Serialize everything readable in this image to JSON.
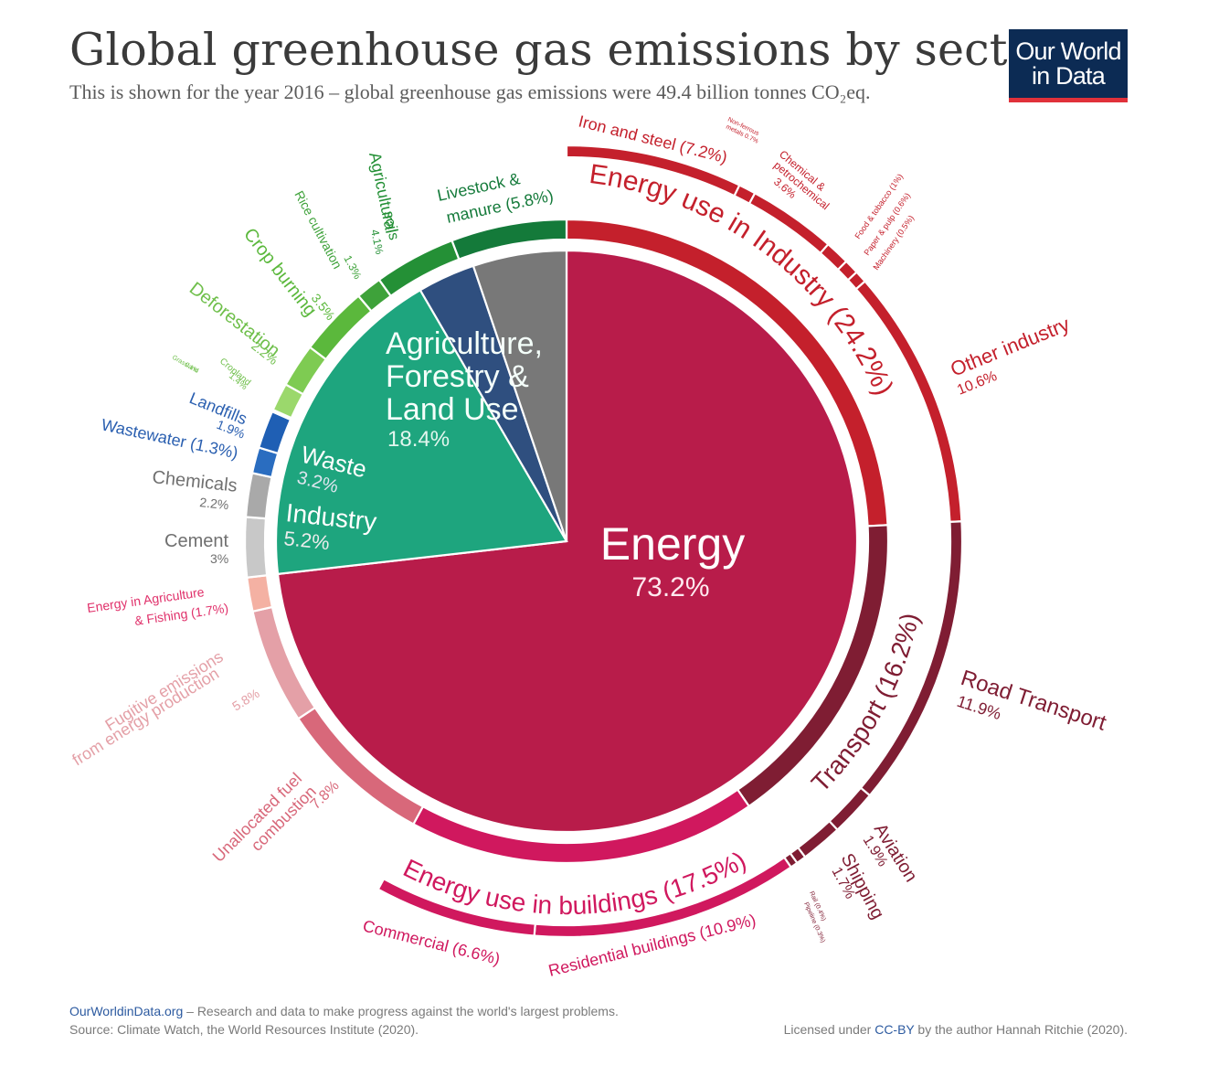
{
  "header": {
    "title": "Global greenhouse gas emissions by sector",
    "subtitle": "This is shown for the year 2016 – global greenhouse gas emissions were 49.4 billion tonnes CO₂eq.",
    "logo_line1": "Our World",
    "logo_line2": "in Data"
  },
  "footer": {
    "site": "OurWorldinData.org",
    "tagline": " – Research and data to make progress against the world's largest problems.",
    "source": "Source: Climate Watch, the World Resources Institute (2020).",
    "license_prefix": "Licensed under ",
    "license_link": "CC-BY",
    "license_suffix": " by the author Hannah Ritchie (2020)."
  },
  "colors": {
    "energy": "#b81c4a",
    "agriculture": "#1ea57e",
    "waste": "#2f4f7f",
    "industry": "#787878"
  },
  "chart_data": {
    "type": "pie",
    "title": "Global greenhouse gas emissions by sector",
    "year": 2016,
    "total": "49.4 billion tonnes CO₂eq",
    "inner": [
      {
        "name": "Energy",
        "label": "73.2%",
        "value": 73.2,
        "color": "#b81c4a"
      },
      {
        "name": "Agriculture, Forestry & Land Use",
        "label": "18.4%",
        "value": 18.4,
        "color": "#1ea57e"
      },
      {
        "name": "Waste",
        "label": "3.2%",
        "value": 3.2,
        "color": "#2f4f7f"
      },
      {
        "name": "Industry",
        "label": "5.2%",
        "value": 5.2,
        "color": "#787878"
      }
    ],
    "middle": [
      {
        "name": "Energy use in Industry",
        "value": 24.2,
        "color": "#c4202c",
        "label": "Energy use in Industry (24.2%)"
      },
      {
        "name": "Transport",
        "value": 16.2,
        "color": "#7f1d33",
        "label": "Transport (16.2%)"
      },
      {
        "name": "Energy use in buildings",
        "value": 17.5,
        "color": "#d0185e",
        "label": "Energy use in buildings (17.5%)"
      },
      {
        "name": "Unallocated fuel combustion",
        "value": 7.8,
        "color": "#d8687a",
        "label": ""
      },
      {
        "name": "Fugitive emissions from energy production",
        "value": 5.8,
        "color": "#e4a0a7",
        "label": ""
      },
      {
        "name": "Energy in Agriculture & Fishing",
        "value": 1.7,
        "color": "#f4b1a3",
        "label": ""
      },
      {
        "name": "Cement",
        "value": 3.0,
        "color": "#c8c8c8",
        "label": ""
      },
      {
        "name": "Chemicals",
        "value": 2.2,
        "color": "#a9a9a9",
        "label": ""
      },
      {
        "name": "Wastewater",
        "value": 1.3,
        "color": "#2a6dc0",
        "label": ""
      },
      {
        "name": "Landfills",
        "value": 1.9,
        "color": "#1f5fb4",
        "label": ""
      },
      {
        "name": "Grassland",
        "value": 0.1,
        "color": "#b8e08c",
        "label": ""
      },
      {
        "name": "Cropland",
        "value": 1.4,
        "color": "#9bd86c",
        "label": ""
      },
      {
        "name": "Deforestation",
        "value": 2.2,
        "color": "#7ecb52",
        "label": ""
      },
      {
        "name": "Crop burning",
        "value": 3.5,
        "color": "#5bb83c",
        "label": ""
      },
      {
        "name": "Rice cultivation",
        "value": 1.3,
        "color": "#3ea23a",
        "label": ""
      },
      {
        "name": "Agricultural soils",
        "value": 4.1,
        "color": "#249036",
        "label": ""
      },
      {
        "name": "Livestock & manure",
        "value": 5.8,
        "color": "#147a3a",
        "label": ""
      }
    ],
    "outer": [
      {
        "name": "Iron and steel",
        "value": 7.2,
        "color": "#c4202c"
      },
      {
        "name": "Non-ferrous metals",
        "value": 0.7,
        "color": "#c4202c"
      },
      {
        "name": "Chemical & petrochemical",
        "value": 3.6,
        "color": "#c4202c"
      },
      {
        "name": "Food & tobacco",
        "value": 1.0,
        "color": "#c4202c"
      },
      {
        "name": "Paper & pulp",
        "value": 0.6,
        "color": "#c4202c"
      },
      {
        "name": "Machinery",
        "value": 0.5,
        "color": "#c4202c"
      },
      {
        "name": "Other industry",
        "value": 10.6,
        "color": "#c4202c"
      },
      {
        "name": "Road Transport",
        "value": 11.9,
        "color": "#7f1d33"
      },
      {
        "name": "Aviation",
        "value": 1.9,
        "color": "#7f1d33"
      },
      {
        "name": "Shipping",
        "value": 1.7,
        "color": "#7f1d33"
      },
      {
        "name": "Rail",
        "value": 0.4,
        "color": "#7f1d33"
      },
      {
        "name": "Pipeline",
        "value": 0.3,
        "color": "#7f1d33"
      },
      {
        "name": "Residential buildings",
        "value": 10.9,
        "color": "#d0185e"
      },
      {
        "name": "Commercial",
        "value": 6.6,
        "color": "#d0185e"
      }
    ],
    "labels": [
      {
        "id": "iron",
        "text": "Iron and steel (7.2%)",
        "color": "#c4202c"
      },
      {
        "id": "nonfer1",
        "text": "Non-ferrous",
        "color": "#c4202c"
      },
      {
        "id": "nonfer2",
        "text": "metals 0.7%",
        "color": "#c4202c"
      },
      {
        "id": "chem1",
        "text": "Chemical &",
        "color": "#c4202c"
      },
      {
        "id": "chem2",
        "text": "petrochemical",
        "color": "#c4202c"
      },
      {
        "id": "chem3",
        "text": "3.6%",
        "color": "#c4202c"
      },
      {
        "id": "food",
        "text": "Food & tobacco (1%)",
        "color": "#c4202c"
      },
      {
        "id": "paper",
        "text": "Paper & pulp (0.6%)",
        "color": "#c4202c"
      },
      {
        "id": "mach",
        "text": "Machinery (0.5%)",
        "color": "#c4202c"
      },
      {
        "id": "other1",
        "text": "Other industry",
        "color": "#c4202c"
      },
      {
        "id": "other2",
        "text": "10.6%",
        "color": "#c4202c"
      },
      {
        "id": "road1",
        "text": "Road Transport",
        "color": "#7f1d33"
      },
      {
        "id": "road2",
        "text": "11.9%",
        "color": "#7f1d33"
      },
      {
        "id": "aviation1",
        "text": "Aviation",
        "color": "#7f1d33"
      },
      {
        "id": "aviation2",
        "text": "1.9%",
        "color": "#7f1d33"
      },
      {
        "id": "shipping1",
        "text": "Shipping",
        "color": "#7f1d33"
      },
      {
        "id": "shipping2",
        "text": "1.7%",
        "color": "#7f1d33"
      },
      {
        "id": "rail",
        "text": "Rail (0.4%)",
        "color": "#7f1d33"
      },
      {
        "id": "pipeline",
        "text": "Pipeline (0.3%)",
        "color": "#7f1d33"
      },
      {
        "id": "residential",
        "text": "Residential buildings (10.9%)",
        "color": "#d0185e"
      },
      {
        "id": "commercial",
        "text": "Commercial (6.6%)",
        "color": "#d0185e"
      },
      {
        "id": "unalloc1",
        "text": "Unallocated fuel",
        "color": "#d8687a"
      },
      {
        "id": "unalloc2",
        "text": "combustion",
        "color": "#d8687a"
      },
      {
        "id": "unalloc3",
        "text": "7.8%",
        "color": "#d8687a"
      },
      {
        "id": "fugitive1",
        "text": "Fugitive emissions",
        "color": "#e4a0a7"
      },
      {
        "id": "fugitive2",
        "text": "from energy production",
        "color": "#e4a0a7"
      },
      {
        "id": "fugitive3",
        "text": "5.8%",
        "color": "#e4a0a7"
      },
      {
        "id": "enagri1",
        "text": "Energy in Agriculture",
        "color": "#e0306a"
      },
      {
        "id": "enagri2",
        "text": "& Fishing (1.7%)",
        "color": "#e0306a"
      },
      {
        "id": "cement1",
        "text": "Cement",
        "color": "#707070"
      },
      {
        "id": "cement2",
        "text": "3%",
        "color": "#707070"
      },
      {
        "id": "chemicals1",
        "text": "Chemicals",
        "color": "#707070"
      },
      {
        "id": "chemicals2",
        "text": "2.2%",
        "color": "#707070"
      },
      {
        "id": "wastewater",
        "text": "Wastewater (1.3%)",
        "color": "#2a5fb0"
      },
      {
        "id": "landfills1",
        "text": "Landfills",
        "color": "#2a5fb0"
      },
      {
        "id": "landfills2",
        "text": "1.9%",
        "color": "#2a5fb0"
      },
      {
        "id": "grass1",
        "text": "Grassland",
        "color": "#6fbf4b"
      },
      {
        "id": "grass2",
        "text": "0.1%",
        "color": "#6fbf4b"
      },
      {
        "id": "cropland1",
        "text": "Cropland",
        "color": "#6fbf4b"
      },
      {
        "id": "cropland2",
        "text": "1.4%",
        "color": "#6fbf4b"
      },
      {
        "id": "defor1",
        "text": "Deforestation",
        "color": "#6fbf4b"
      },
      {
        "id": "defor2",
        "text": "2.2%",
        "color": "#6fbf4b"
      },
      {
        "id": "cropburn1",
        "text": "Crop burning",
        "color": "#5bb83c"
      },
      {
        "id": "cropburn2",
        "text": "3.5%",
        "color": "#5bb83c"
      },
      {
        "id": "rice1",
        "text": "Rice cultivation",
        "color": "#3ea23a"
      },
      {
        "id": "rice2",
        "text": "1.3%",
        "color": "#3ea23a"
      },
      {
        "id": "soils1",
        "text": "Agricultural",
        "color": "#249036"
      },
      {
        "id": "soils2",
        "text": "soils",
        "color": "#249036"
      },
      {
        "id": "soils3",
        "text": "4.1%",
        "color": "#249036"
      },
      {
        "id": "livestock1",
        "text": "Livestock &",
        "color": "#147a3a"
      },
      {
        "id": "livestock2",
        "text": "manure (5.8%)",
        "color": "#147a3a"
      }
    ],
    "inner_text": {
      "agriculture_lines": [
        "Agriculture,",
        "Forestry &",
        "Land Use"
      ],
      "agriculture_pct": "18.4%",
      "waste_name": "Waste",
      "waste_pct": "3.2%",
      "industry_name": "Industry",
      "industry_pct": "5.2%",
      "energy_name": "Energy",
      "energy_pct": "73.2%"
    }
  }
}
